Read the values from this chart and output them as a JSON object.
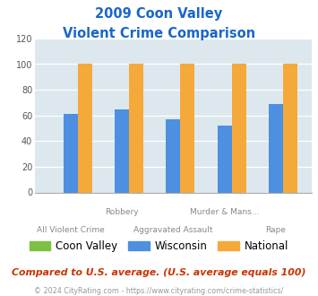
{
  "title_line1": "2009 Coon Valley",
  "title_line2": "Violent Crime Comparison",
  "groups": [
    {
      "coon_valley": 0,
      "wisconsin": 61,
      "national": 100
    },
    {
      "coon_valley": 0,
      "wisconsin": 65,
      "national": 100
    },
    {
      "coon_valley": 0,
      "wisconsin": 57,
      "national": 100
    },
    {
      "coon_valley": 0,
      "wisconsin": 52,
      "national": 100
    },
    {
      "coon_valley": 0,
      "wisconsin": 69,
      "national": 100
    }
  ],
  "label_row1": [
    "",
    "Robbery",
    "",
    "Murder & Mans...",
    ""
  ],
  "label_row2": [
    "All Violent Crime",
    "",
    "Aggravated Assault",
    "",
    "Rape"
  ],
  "colors": {
    "coon_valley": "#7dc142",
    "wisconsin": "#4d8fe0",
    "national": "#f5a93a"
  },
  "ylim": [
    0,
    120
  ],
  "yticks": [
    0,
    20,
    40,
    60,
    80,
    100,
    120
  ],
  "plot_bg_color": "#dce8ee",
  "title_color": "#1a66cc",
  "legend_labels": [
    "Coon Valley",
    "Wisconsin",
    "National"
  ],
  "footnote1": "Compared to U.S. average. (U.S. average equals 100)",
  "footnote2": "© 2024 CityRating.com - https://www.cityrating.com/crime-statistics/",
  "footnote1_color": "#cc3300",
  "footnote2_color": "#999999",
  "footnote2_link_color": "#4488cc"
}
